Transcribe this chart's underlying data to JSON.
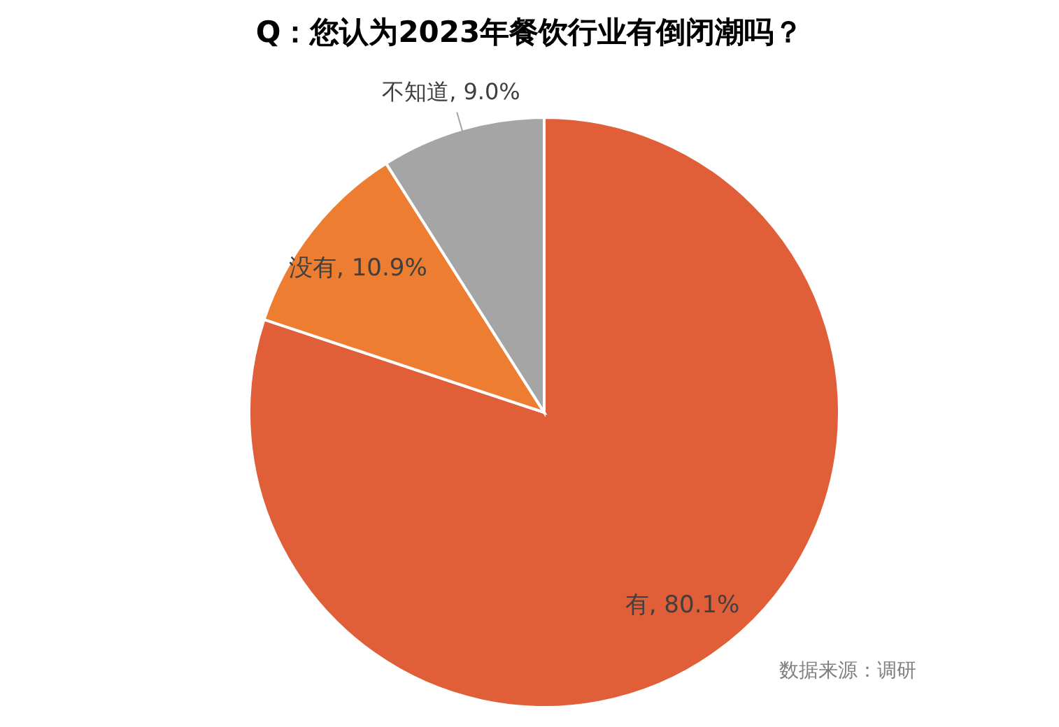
{
  "chart_data": {
    "type": "pie",
    "title": "Q：您认为2023年餐饮行业有倒闭潮吗？",
    "categories": [
      "有",
      "没有",
      "不知道"
    ],
    "values": [
      80.1,
      10.9,
      9.0
    ],
    "colors": [
      "#e05f38",
      "#ed7d31",
      "#a5a5a5"
    ],
    "value_labels": [
      ", 80.1%",
      ", 10.9%",
      ", 9.0%"
    ],
    "annotations": [
      "数据来源：调研"
    ]
  }
}
